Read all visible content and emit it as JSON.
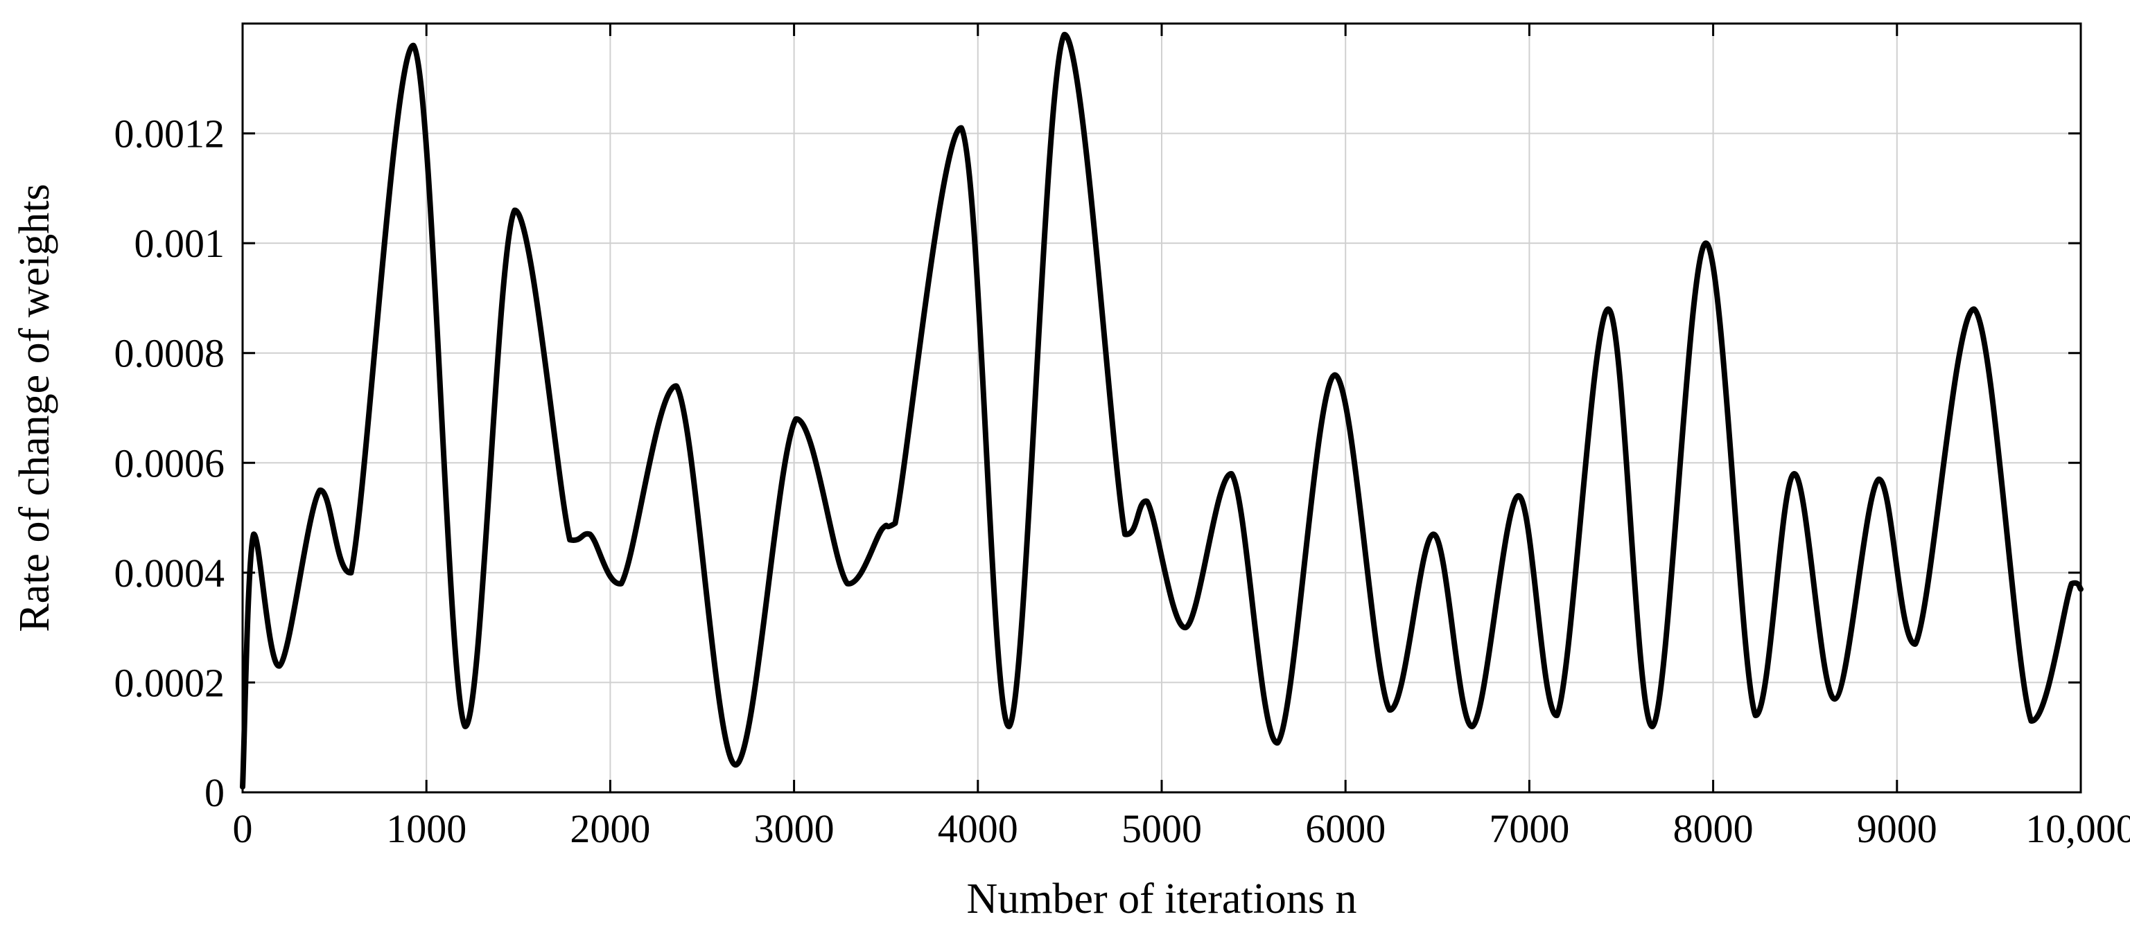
{
  "chart_data": {
    "type": "line",
    "title": "",
    "xlabel": "Number of iterations n",
    "ylabel": "Rate of change of weights",
    "xlim": [
      0,
      10000
    ],
    "ylim": [
      0,
      0.0014
    ],
    "grid": true,
    "legend": "none",
    "colors": {
      "line": "#000000",
      "grid": "#d0d0d0",
      "axes": "#000000"
    },
    "x_ticks": [
      0,
      1000,
      2000,
      3000,
      4000,
      5000,
      6000,
      7000,
      8000,
      9000,
      10000
    ],
    "x_tick_labels": [
      "0",
      "1000",
      "2000",
      "3000",
      "4000",
      "5000",
      "6000",
      "7000",
      "8000",
      "9000",
      "10,000"
    ],
    "y_ticks": [
      0,
      0.0002,
      0.0004,
      0.0006,
      0.0008,
      0.001,
      0.0012
    ],
    "y_tick_labels": [
      "0",
      "0.0002",
      "0.0004",
      "0.0006",
      "0.0008",
      "0.001",
      "0.0012"
    ],
    "series": [
      {
        "x": [
          0,
          60,
          200,
          420,
          590,
          930,
          1210,
          1480,
          1780,
          1890,
          2060,
          2360,
          2680,
          3010,
          3290,
          3480,
          3550,
          3910,
          4170,
          4470,
          4800,
          4920,
          5130,
          5380,
          5630,
          5940,
          6240,
          6480,
          6690,
          6940,
          7150,
          7430,
          7670,
          7960,
          8230,
          8440,
          8660,
          8900,
          9100,
          9420,
          9730,
          9950,
          10000
        ],
        "y": [
          1e-05,
          0.00047,
          0.00023,
          0.00055,
          0.0004,
          0.00136,
          0.00012,
          0.00106,
          0.00046,
          0.00047,
          0.00038,
          0.00074,
          5e-05,
          0.00068,
          0.00038,
          0.00048,
          0.00049,
          0.00121,
          0.00012,
          0.00138,
          0.00047,
          0.00053,
          0.0003,
          0.00058,
          9e-05,
          0.00076,
          0.00015,
          0.00047,
          0.00012,
          0.00054,
          0.00014,
          0.00088,
          0.00012,
          0.001,
          0.00014,
          0.00058,
          0.00017,
          0.00057,
          0.00027,
          0.00088,
          0.00013,
          0.00038,
          0.00037
        ]
      }
    ]
  }
}
